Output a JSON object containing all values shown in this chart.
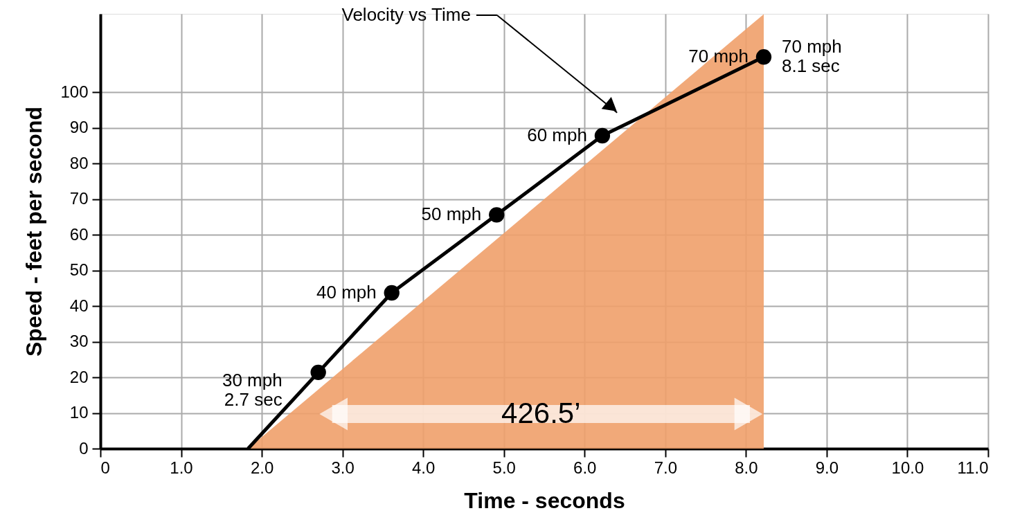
{
  "chart_data": {
    "type": "line",
    "xlabel": "Time - seconds",
    "ylabel": "Speed - feet per second",
    "xlim": [
      0,
      11
    ],
    "ylim": [
      0,
      122
    ],
    "xticks": [
      0,
      {
        "value": 1,
        "label": "1.0"
      },
      {
        "value": 2,
        "label": "2.0"
      },
      {
        "value": 3,
        "label": "3.0"
      },
      {
        "value": 4,
        "label": "4.0"
      },
      {
        "value": 5,
        "label": "5.0"
      },
      {
        "value": 6,
        "label": "6.0"
      },
      {
        "value": 7,
        "label": "7.0"
      },
      {
        "value": 8,
        "label": "8.0"
      },
      {
        "value": 9,
        "label": "9.0"
      },
      {
        "value": 10,
        "label": "10.0"
      },
      {
        "value": 11,
        "label": "11.0"
      }
    ],
    "yticks": [
      0,
      10,
      20,
      30,
      40,
      50,
      60,
      70,
      80,
      90,
      100
    ],
    "grid": true,
    "line_style": "solid",
    "series": [
      {
        "type": "area",
        "color": "#f0a06a",
        "x": [
          1.83,
          8.22
        ],
        "values": [
          0,
          121.9
        ]
      },
      {
        "color": "#000000",
        "marker": "circle",
        "x": [
          1.83,
          2.7,
          3.61,
          4.91,
          6.22,
          8.22
        ],
        "values": [
          0,
          21.4,
          43.7,
          65.6,
          87.8,
          109.9
        ]
      }
    ],
    "annotations": [
      "30 mph\n2.7 sec",
      "40 mph",
      "50 mph",
      "60 mph",
      "70 mph",
      "70 mph\n8.1 sec",
      "Velocity vs Time",
      "426.5’"
    ]
  }
}
